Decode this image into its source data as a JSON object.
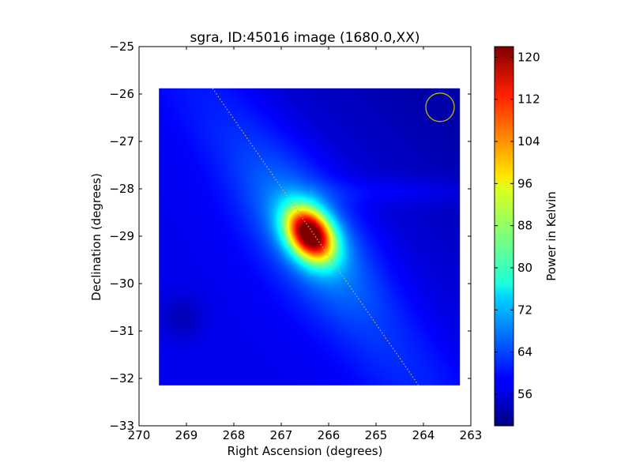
{
  "chart_data": {
    "type": "heatmap",
    "title": "sgra, ID:45016 image (1680.0,XX)",
    "xlabel": "Right Ascension (degrees)",
    "ylabel": "Declination (degrees)",
    "xlim": [
      270,
      263
    ],
    "ylim": [
      -33,
      -25
    ],
    "x_ticks": [
      270,
      269,
      268,
      267,
      266,
      265,
      264,
      263
    ],
    "y_ticks": [
      -25,
      -26,
      -27,
      -28,
      -29,
      -30,
      -31,
      -32,
      -33
    ],
    "x_tick_labels": [
      "270",
      "269",
      "268",
      "267",
      "266",
      "265",
      "264",
      "263"
    ],
    "y_tick_labels": [
      "−25",
      "−26",
      "−27",
      "−28",
      "−29",
      "−30",
      "−31",
      "−32",
      "−33"
    ],
    "image_extent": {
      "ra": [
        269.58,
        263.23
      ],
      "dec": [
        -32.15,
        -25.88
      ]
    },
    "source": {
      "ra": 266.4,
      "dec": -28.95,
      "peak": 121
    },
    "background_level": 58,
    "beam_circle": {
      "ra": 263.65,
      "dec": -26.28,
      "radius_deg": 0.3
    },
    "galactic_plane": {
      "points": [
        [
          268.45,
          -25.88
        ],
        [
          264.1,
          -32.15
        ]
      ]
    },
    "colorbar": {
      "label": "Power in Kelvin",
      "colormap": "jet",
      "range": [
        50,
        122
      ],
      "ticks": [
        56,
        64,
        72,
        80,
        88,
        96,
        104,
        112,
        120
      ],
      "tick_labels": [
        "56",
        "64",
        "72",
        "80",
        "88",
        "96",
        "104",
        "112",
        "120"
      ]
    },
    "colors": {
      "plane_line": "#c8b450",
      "beam_circle": "#c8b400"
    }
  }
}
